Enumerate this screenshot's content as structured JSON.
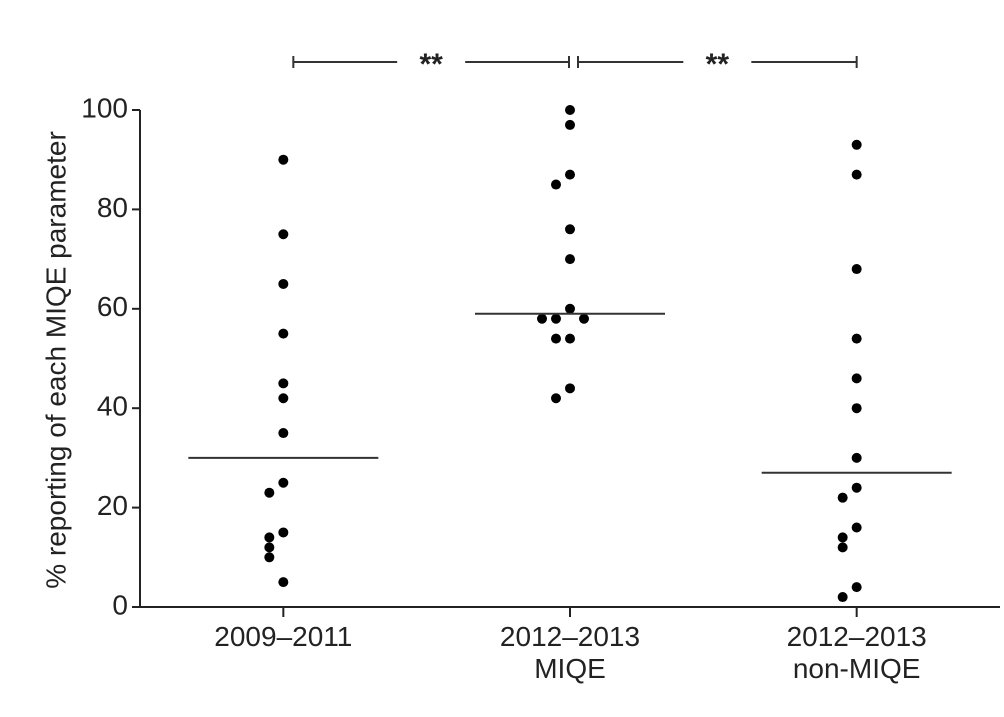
{
  "chart_data": {
    "type": "dot",
    "y_label": "% reporting of each MIQE parameter",
    "categories": [
      "2009–2011",
      "2012–2013\nMIQE",
      "2012–2013\nnon-MIQE"
    ],
    "groups": [
      [
        90,
        75,
        65,
        55,
        45,
        42,
        35,
        25,
        23,
        15,
        14,
        12,
        10,
        5
      ],
      [
        100,
        97,
        87,
        85,
        76,
        70,
        60,
        58,
        58,
        58,
        54,
        54,
        44,
        42
      ],
      [
        93,
        87,
        68,
        54,
        46,
        40,
        30,
        24,
        22,
        16,
        14,
        12,
        4,
        2
      ]
    ],
    "medians": [
      30,
      59,
      27
    ],
    "comparisons": [
      {
        "groups": [
          0,
          1
        ],
        "label": "**"
      },
      {
        "groups": [
          1,
          2
        ],
        "label": "**"
      }
    ],
    "color": "#000000",
    "ylim": [
      0,
      100
    ],
    "yticks": [
      0,
      20,
      40,
      60,
      80,
      100
    ]
  }
}
